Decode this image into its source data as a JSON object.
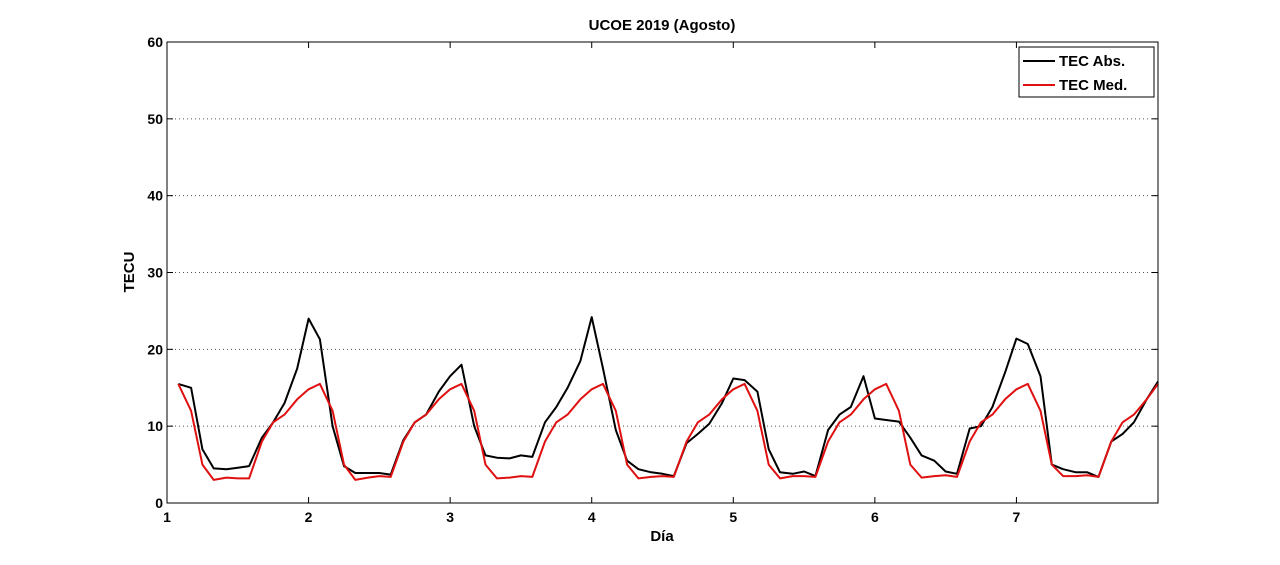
{
  "chart_data": {
    "type": "line",
    "title": "UCOE 2019 (Agosto)",
    "xlabel": "Día",
    "ylabel": "TECU",
    "xlim": [
      1,
      8
    ],
    "ylim": [
      0,
      60
    ],
    "x_ticks": [
      1,
      2,
      3,
      4,
      5,
      6,
      7
    ],
    "y_ticks": [
      0,
      10,
      20,
      30,
      40,
      50,
      60
    ],
    "grid": "horizontal dotted",
    "legend_position": "top-right",
    "series": [
      {
        "name": "TEC Abs.",
        "color": "#000000",
        "x": [
          1.08,
          1.17,
          1.25,
          1.33,
          1.42,
          1.5,
          1.58,
          1.67,
          1.75,
          1.83,
          1.92,
          2.0,
          2.08,
          2.17,
          2.25,
          2.33,
          2.42,
          2.5,
          2.58,
          2.67,
          2.75,
          2.83,
          2.92,
          3.0,
          3.08,
          3.17,
          3.25,
          3.33,
          3.42,
          3.5,
          3.58,
          3.67,
          3.75,
          3.83,
          3.92,
          4.0,
          4.08,
          4.17,
          4.25,
          4.33,
          4.42,
          4.5,
          4.58,
          4.67,
          4.75,
          4.83,
          4.92,
          5.0,
          5.08,
          5.17,
          5.25,
          5.33,
          5.42,
          5.5,
          5.58,
          5.67,
          5.75,
          5.83,
          5.92,
          6.0,
          6.08,
          6.17,
          6.25,
          6.33,
          6.42,
          6.5,
          6.58,
          6.67,
          6.75,
          6.83,
          6.92,
          7.0,
          7.08,
          7.17,
          7.25,
          7.33,
          7.42,
          7.5,
          7.58,
          7.67,
          7.75,
          7.83,
          7.92,
          8.0
        ],
        "y": [
          15.5,
          15.0,
          7.0,
          4.5,
          4.4,
          4.6,
          4.8,
          8.5,
          10.5,
          13.0,
          17.5,
          24.0,
          21.3,
          10.0,
          4.8,
          3.9,
          3.9,
          3.9,
          3.7,
          8.2,
          10.5,
          11.5,
          14.5,
          16.5,
          18.0,
          10.0,
          6.2,
          5.9,
          5.8,
          6.2,
          6.0,
          10.5,
          12.5,
          15.0,
          18.5,
          24.2,
          17.5,
          9.5,
          5.5,
          4.4,
          4.0,
          3.8,
          3.5,
          7.8,
          9.0,
          10.3,
          13.0,
          16.2,
          16.0,
          14.5,
          7.0,
          4.0,
          3.8,
          4.1,
          3.5,
          9.5,
          11.5,
          12.5,
          16.5,
          11.0,
          10.8,
          10.6,
          8.5,
          6.2,
          5.5,
          4.1,
          3.8,
          9.7,
          10.0,
          12.5,
          17.0,
          21.4,
          20.7,
          16.5,
          5.0,
          4.4,
          4.0,
          4.0,
          3.4,
          8.0,
          9.0,
          10.5,
          13.5,
          15.8
        ]
      },
      {
        "name": "TEC Med.",
        "color": "#e01010",
        "x": [
          1.08,
          1.17,
          1.25,
          1.33,
          1.42,
          1.5,
          1.58,
          1.67,
          1.75,
          1.83,
          1.92,
          2.0,
          2.08,
          2.17,
          2.25,
          2.33,
          2.42,
          2.5,
          2.58,
          2.67,
          2.75,
          2.83,
          2.92,
          3.0,
          3.08,
          3.17,
          3.25,
          3.33,
          3.42,
          3.5,
          3.58,
          3.67,
          3.75,
          3.83,
          3.92,
          4.0,
          4.08,
          4.17,
          4.25,
          4.33,
          4.42,
          4.5,
          4.58,
          4.67,
          4.75,
          4.83,
          4.92,
          5.0,
          5.08,
          5.17,
          5.25,
          5.33,
          5.42,
          5.5,
          5.58,
          5.67,
          5.75,
          5.83,
          5.92,
          6.0,
          6.08,
          6.17,
          6.25,
          6.33,
          6.42,
          6.5,
          6.58,
          6.67,
          6.75,
          6.83,
          6.92,
          7.0,
          7.08,
          7.17,
          7.25,
          7.33,
          7.42,
          7.5,
          7.58,
          7.67,
          7.75,
          7.83,
          7.92,
          8.0
        ],
        "y": [
          15.5,
          12.0,
          5.0,
          3.0,
          3.3,
          3.2,
          3.2,
          8.0,
          10.5,
          11.5,
          13.5,
          14.8,
          15.5,
          12.0,
          5.0,
          3.0,
          3.3,
          3.5,
          3.4,
          8.0,
          10.5,
          11.5,
          13.5,
          14.8,
          15.5,
          12.0,
          5.0,
          3.2,
          3.3,
          3.5,
          3.4,
          8.0,
          10.5,
          11.5,
          13.5,
          14.8,
          15.5,
          12.0,
          5.0,
          3.2,
          3.4,
          3.5,
          3.4,
          8.0,
          10.5,
          11.5,
          13.5,
          14.8,
          15.5,
          12.0,
          5.0,
          3.2,
          3.5,
          3.5,
          3.4,
          8.0,
          10.5,
          11.5,
          13.5,
          14.8,
          15.5,
          12.0,
          5.0,
          3.3,
          3.5,
          3.6,
          3.4,
          8.0,
          10.5,
          11.5,
          13.5,
          14.8,
          15.5,
          12.0,
          5.0,
          3.5,
          3.5,
          3.6,
          3.4,
          8.0,
          10.5,
          11.5,
          13.5,
          15.5
        ]
      }
    ]
  }
}
